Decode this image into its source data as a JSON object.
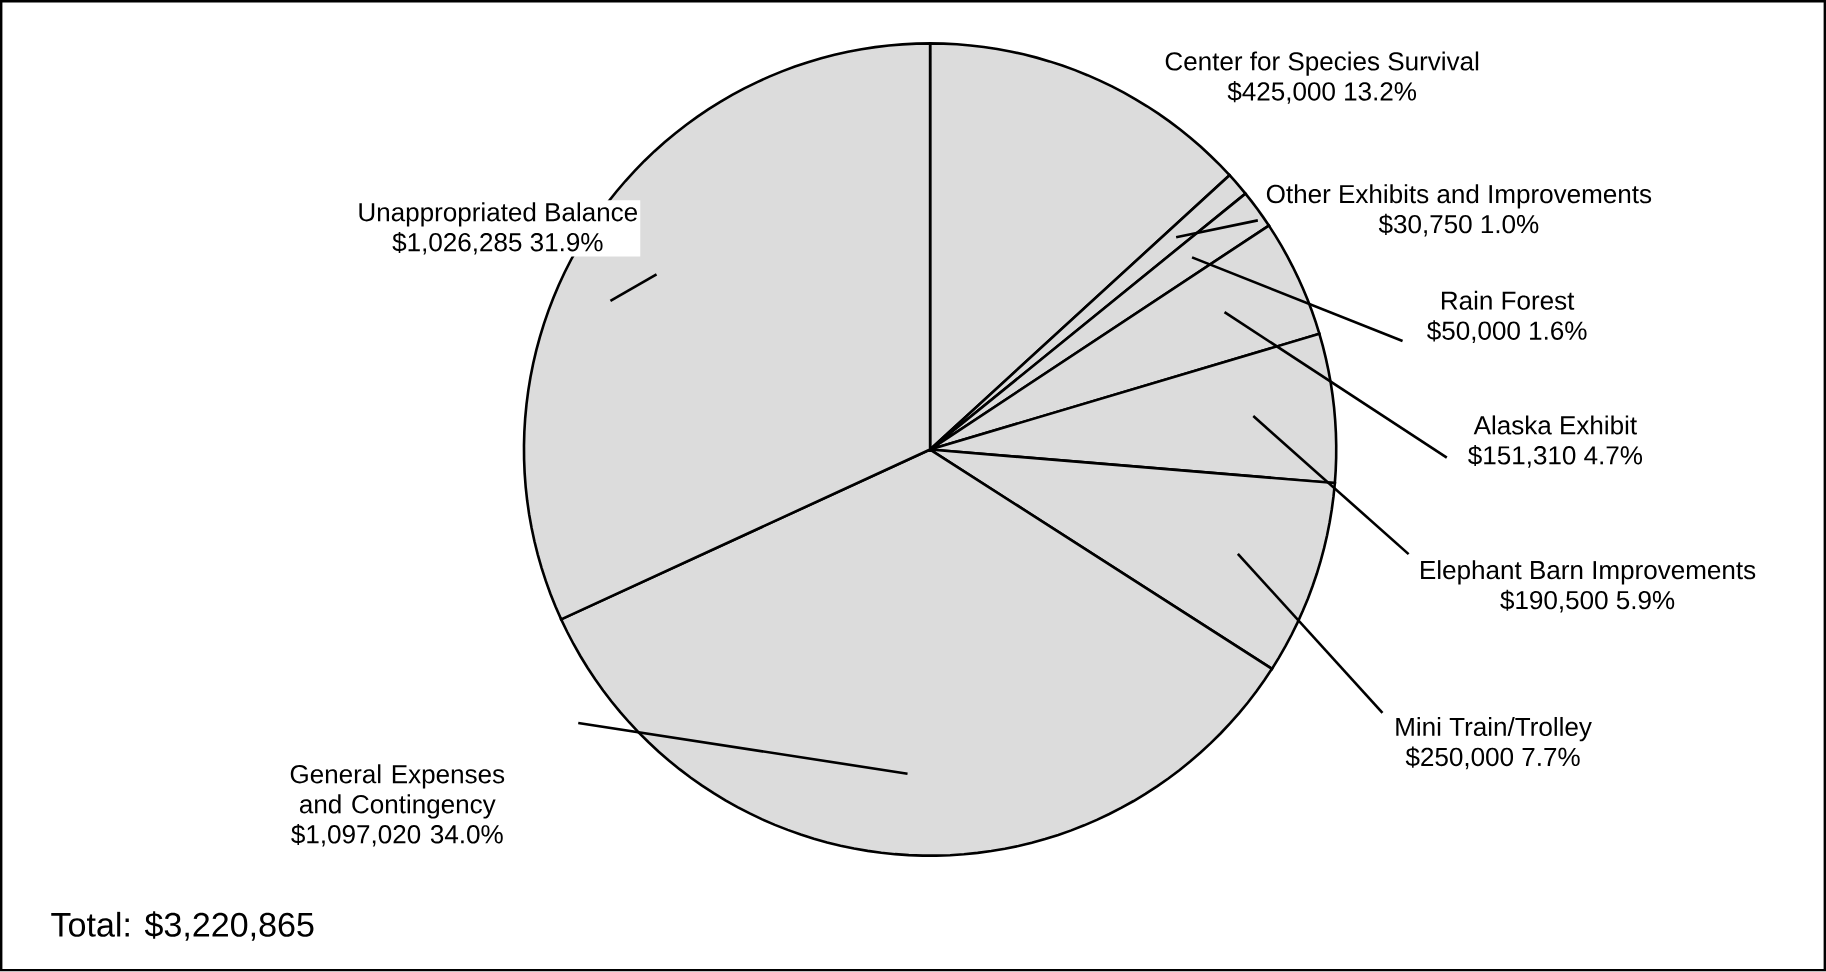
{
  "chart_data": {
    "type": "pie",
    "categories": [
      "Center for Species Survival",
      "Other Exhibits and Improvements",
      "Rain Forest",
      "Alaska Exhibit",
      "Elephant Barn Improvements",
      "Mini Train/Trolley",
      "General Expenses and Contingency",
      "Unappropriated Balance"
    ],
    "values": [
      425000,
      30750,
      50000,
      151310,
      190500,
      250000,
      1097020,
      1026285
    ],
    "value_labels": [
      "$425,000  13.2%",
      "$30,750  1.0%",
      "$50,000  1.6%",
      "$151,310  4.7%",
      "$190,500  5.9%",
      "$250,000 7.7%",
      "$1,097,020  34.0%",
      "$1,026,285  31.9%"
    ],
    "colors": [
      "#dcdcdc",
      "#dcdcdc",
      "#dcdcdc",
      "#dcdcdc",
      "#dcdcdc",
      "#dcdcdc",
      "#dcdcdc",
      "#dcdcdc"
    ],
    "annotations": [
      "Total: $3,220,865"
    ]
  }
}
